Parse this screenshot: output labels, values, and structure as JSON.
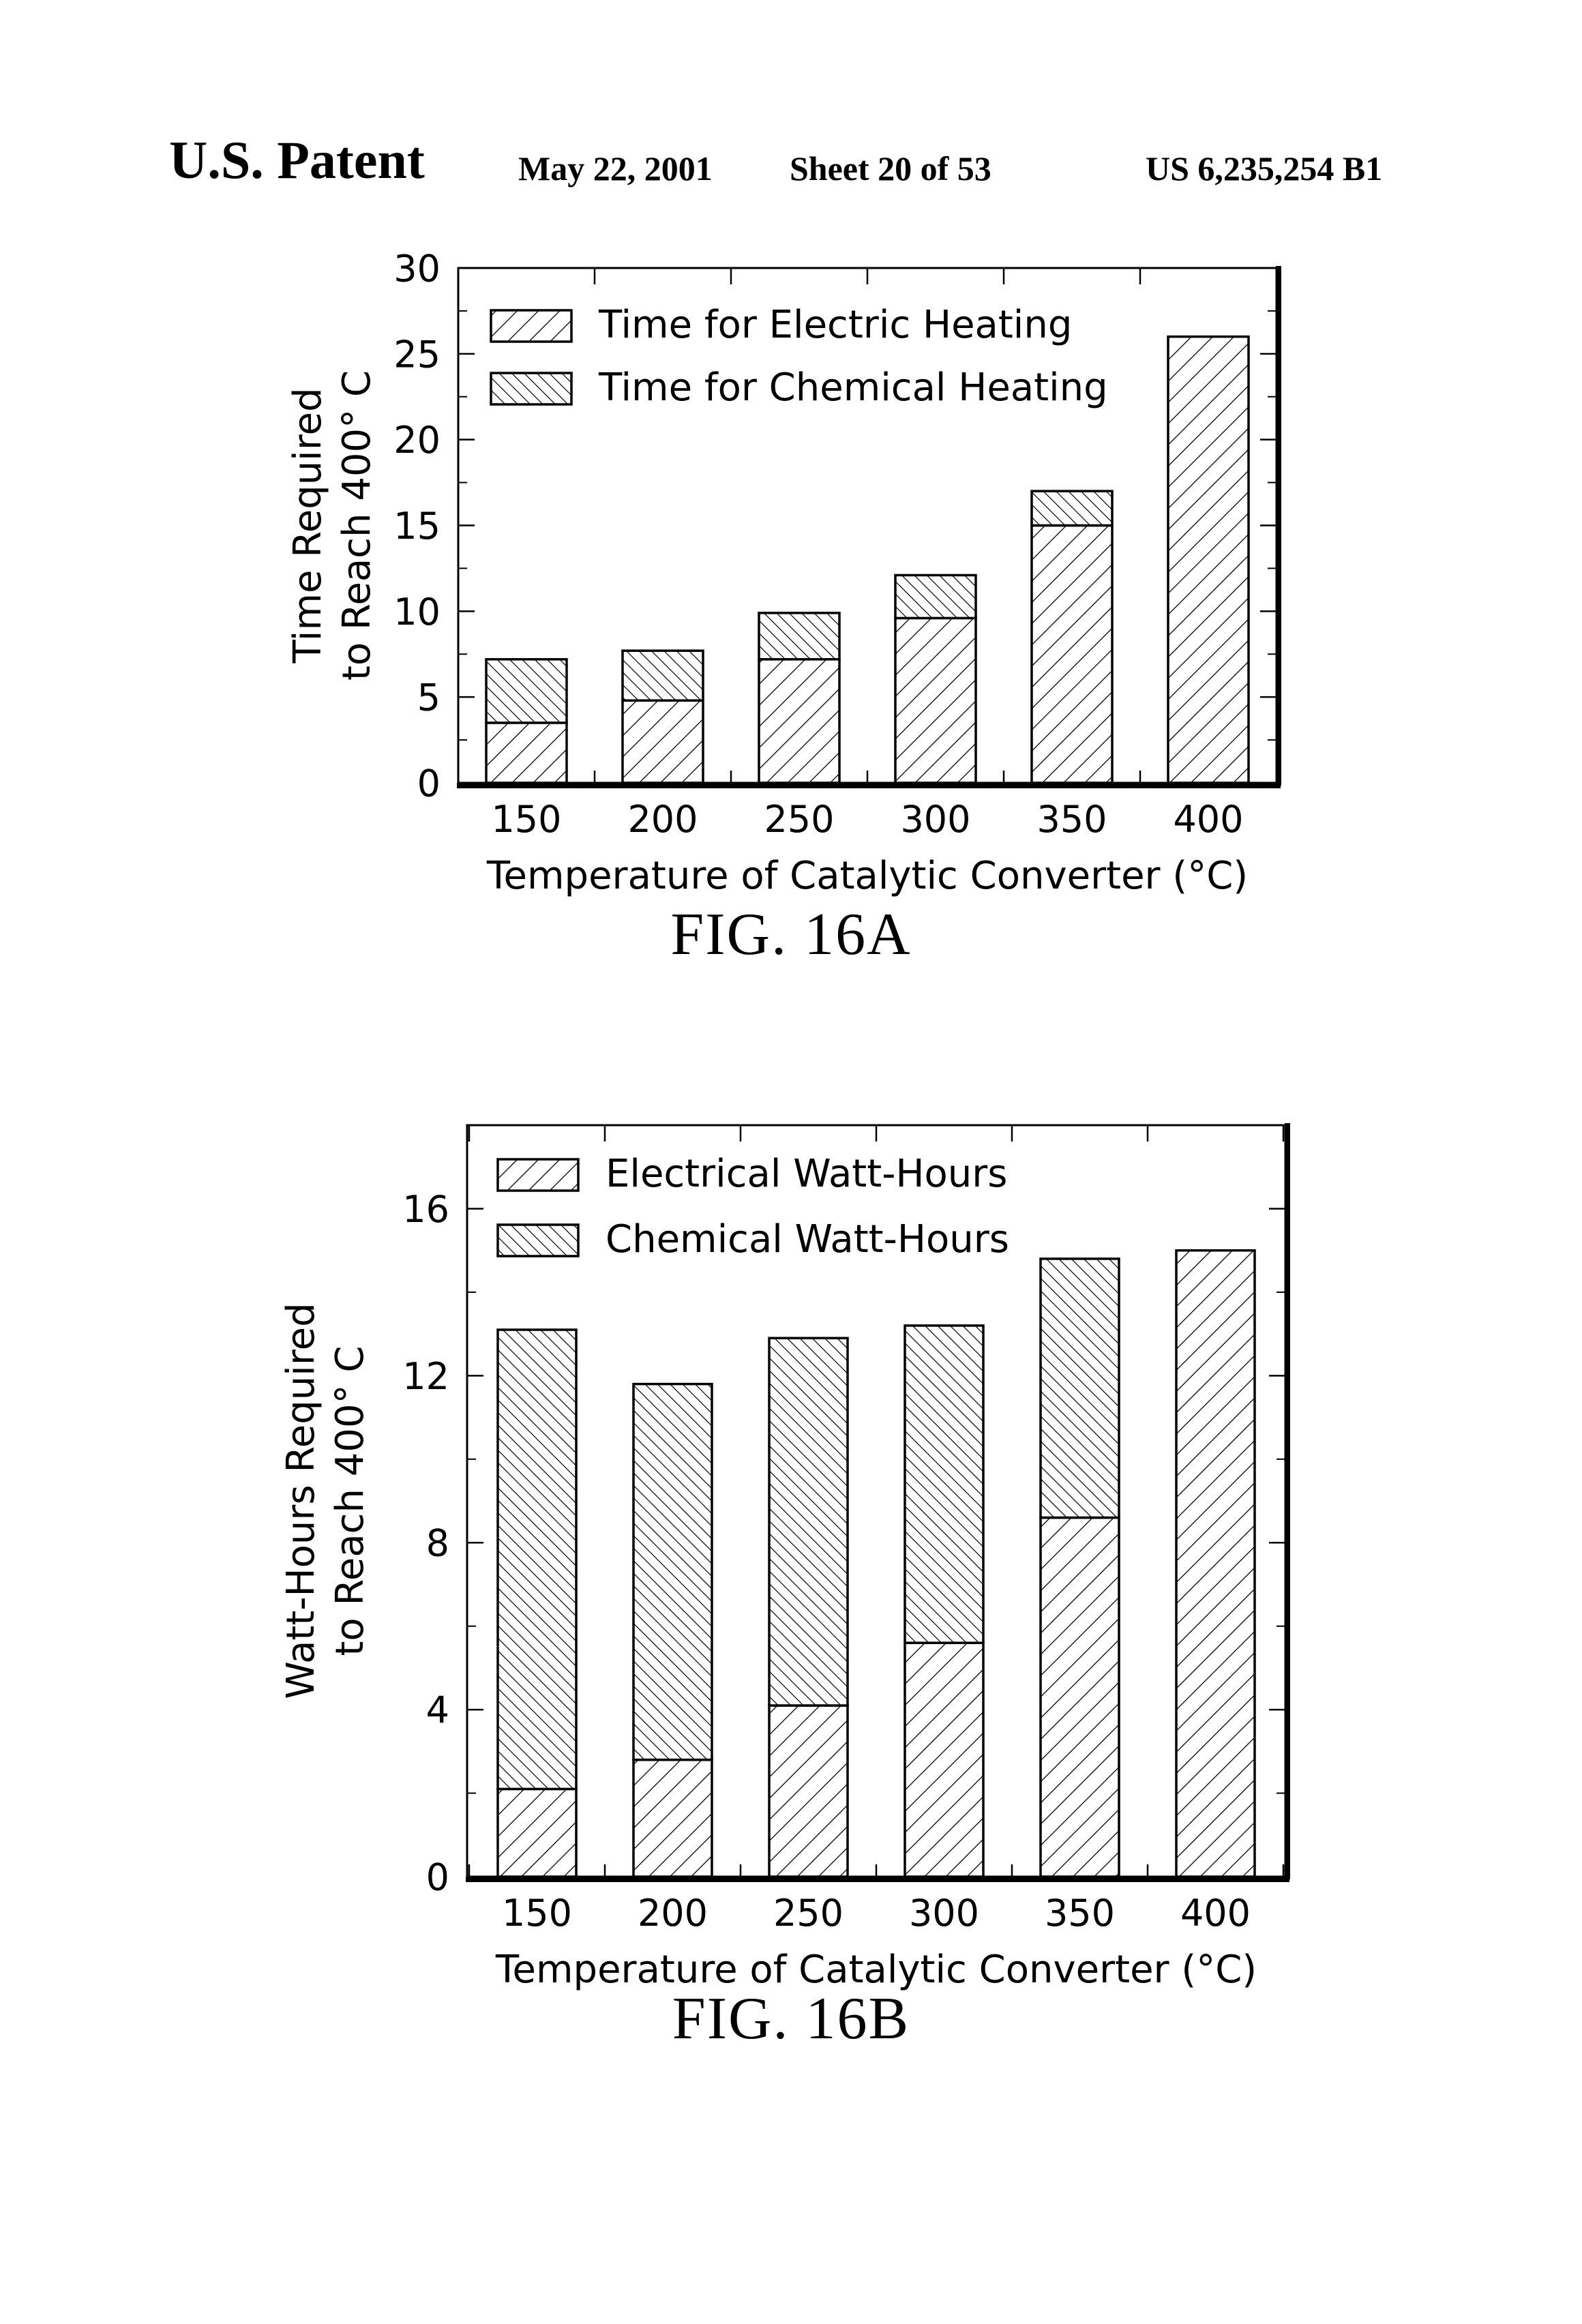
{
  "header": {
    "left": "U.S. Patent",
    "date": "May 22, 2001",
    "sheet": "Sheet 20 of 53",
    "number": "US 6,235,254 B1"
  },
  "figures": [
    {
      "label": "FIG. 16A"
    },
    {
      "label": "FIG. 16B"
    }
  ],
  "chart_data": [
    {
      "type": "bar",
      "stacked": true,
      "title": "",
      "xlabel": "Temperature of Catalytic Converter (°C)",
      "ylabel_lines": [
        "Time Required",
        "to Reach 400° C"
      ],
      "categories": [
        "150",
        "200",
        "250",
        "300",
        "350",
        "400"
      ],
      "ylim": [
        0,
        30
      ],
      "yticks": [
        0,
        5,
        10,
        15,
        20,
        25,
        30
      ],
      "legend_position": "top-left",
      "series": [
        {
          "name": "Time for Electric Heating",
          "pattern": "forward-hatch",
          "values": [
            3.5,
            4.8,
            7.2,
            9.6,
            15.0,
            26.0
          ]
        },
        {
          "name": "Time for Chemical Heating",
          "pattern": "back-hatch",
          "values": [
            3.7,
            2.9,
            2.7,
            2.5,
            2.0,
            0
          ]
        }
      ]
    },
    {
      "type": "bar",
      "stacked": true,
      "title": "",
      "xlabel": "Temperature of Catalytic Converter (°C)",
      "ylabel_lines": [
        "Watt-Hours Required",
        "to Reach 400° C"
      ],
      "categories": [
        "150",
        "200",
        "250",
        "300",
        "350",
        "400"
      ],
      "ylim": [
        0,
        18
      ],
      "yticks": [
        0,
        4,
        8,
        12,
        16
      ],
      "legend_position": "top-left",
      "series": [
        {
          "name": "Electrical Watt-Hours",
          "pattern": "forward-hatch",
          "values": [
            2.1,
            2.8,
            4.1,
            5.6,
            8.6,
            15.0
          ]
        },
        {
          "name": "Chemical Watt-Hours",
          "pattern": "back-hatch",
          "values": [
            11.0,
            9.0,
            8.8,
            7.6,
            6.2,
            0
          ]
        }
      ]
    }
  ]
}
